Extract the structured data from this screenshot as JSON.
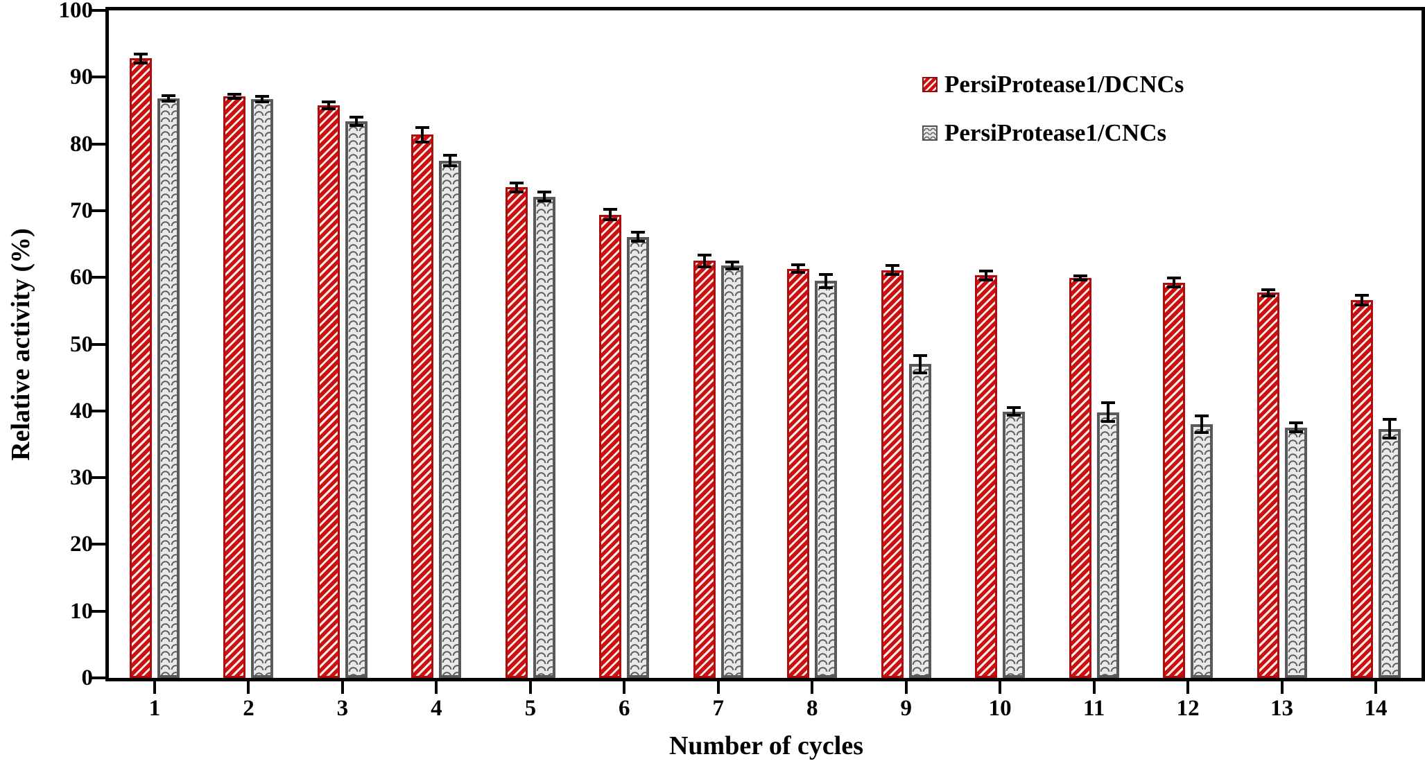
{
  "figure": {
    "background_color": "#ffffff",
    "frame_color": "#000000",
    "text_color": "#000000"
  },
  "chart_data": {
    "type": "bar",
    "title": "",
    "xlabel": "Number of cycles",
    "ylabel": "Relative activity (%)",
    "ylim": [
      0,
      100
    ],
    "yticks": [
      0,
      10,
      20,
      30,
      40,
      50,
      60,
      70,
      80,
      90,
      100
    ],
    "categories": [
      "1",
      "2",
      "3",
      "4",
      "5",
      "6",
      "7",
      "8",
      "9",
      "10",
      "11",
      "12",
      "13",
      "14"
    ],
    "grid": false,
    "legend_position": "upper-right-inside",
    "error_bars": true,
    "series": [
      {
        "name": "PersiProtease1/DCNCs",
        "color": "#cc100f",
        "border_color": "#ad0e0d",
        "pattern": "diagonal-hatch-white",
        "values": [
          92.8,
          87.1,
          85.8,
          81.4,
          73.5,
          69.4,
          62.5,
          61.3,
          61.1,
          60.3,
          59.9,
          59.2,
          57.7,
          56.6
        ],
        "errors": [
          0.9,
          0.5,
          0.7,
          1.3,
          0.9,
          1.0,
          1.1,
          0.8,
          0.9,
          0.9,
          0.5,
          0.9,
          0.7,
          0.9
        ]
      },
      {
        "name": "PersiProtease1/CNCs",
        "color": "#e9e9e9",
        "border_color": "#595959",
        "pattern": "wave-gray",
        "values": [
          86.8,
          86.7,
          83.4,
          77.5,
          72.1,
          66.1,
          61.8,
          59.5,
          47.0,
          39.9,
          39.8,
          38.0,
          37.5,
          37.3
        ],
        "errors": [
          0.6,
          0.6,
          0.8,
          1.0,
          0.9,
          0.9,
          0.7,
          1.2,
          1.5,
          0.8,
          1.6,
          1.5,
          0.9,
          1.6
        ]
      }
    ]
  }
}
